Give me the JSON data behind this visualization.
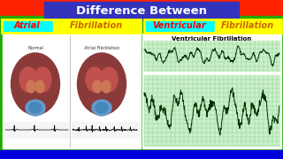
{
  "title": "Difference Between",
  "title_bg": "#3333bb",
  "title_color": "#ffffff",
  "label_left1": "Atrial",
  "label_left2": "Fibrillation",
  "label_right1": "Ventricular",
  "label_right2": "Fibrillation",
  "label_color_red": "#ff0000",
  "label_color_orange": "#cc6600",
  "label_bg_cyan": "#00ffff",
  "label_bg_yellow": "#ffff00",
  "bg_top": "#ff2200",
  "bg_mid": "#22aa00",
  "bg_bot": "#0000dd",
  "panel_bg": "#ffffff",
  "vf_label": "Ventricular Fibrillation",
  "ecg_bg": "#ccf0cc",
  "ecg_grid": "#88cc88",
  "ecg_line": "#003300",
  "heart_bg": "#f5f0f0",
  "heart_color1": "#b05555",
  "heart_color2": "#995050",
  "normal_label": "Normal",
  "afib_label": "Atrial Fibrillation",
  "separator_color": "#aaaaaa"
}
